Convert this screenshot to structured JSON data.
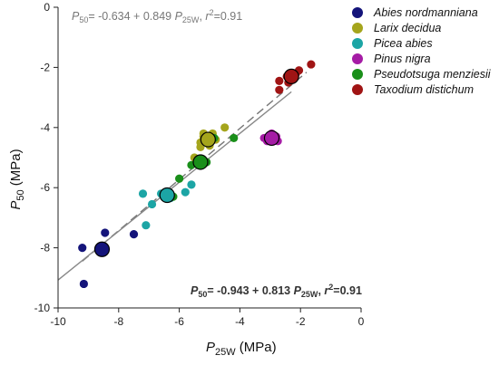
{
  "chart_data": {
    "type": "scatter",
    "title": "",
    "xlabel": {
      "main": "P",
      "sub": "25W",
      "unit": " (MPa)"
    },
    "ylabel": {
      "main": "P",
      "sub": "50",
      "unit": " (MPa)"
    },
    "xlim": [
      -10,
      0
    ],
    "ylim": [
      -10,
      0
    ],
    "xticks": [
      -10,
      -8,
      -6,
      -4,
      -2,
      0
    ],
    "yticks": [
      -10,
      -8,
      -6,
      -4,
      -2,
      0
    ],
    "grid": false,
    "legend_position": "top-right",
    "series": [
      {
        "name": "Abies nordmanniana",
        "color": "#14147a",
        "points": [
          [
            -9.15,
            -9.2
          ],
          [
            -9.2,
            -8.0
          ],
          [
            -8.55,
            -8.05
          ],
          [
            -8.45,
            -7.5
          ],
          [
            -7.5,
            -7.55
          ]
        ],
        "mean": [
          -8.55,
          -8.05
        ]
      },
      {
        "name": "Larix decidua",
        "color": "#a5a51c",
        "points": [
          [
            -5.0,
            -4.6
          ],
          [
            -5.3,
            -4.5
          ],
          [
            -5.2,
            -4.3
          ],
          [
            -4.9,
            -4.2
          ],
          [
            -4.5,
            -4.0
          ],
          [
            -5.5,
            -5.0
          ],
          [
            -5.3,
            -4.65
          ],
          [
            -4.8,
            -4.4
          ],
          [
            -5.2,
            -4.2
          ]
        ],
        "mean": [
          -5.05,
          -4.4
        ]
      },
      {
        "name": "Picea abies",
        "color": "#1ca5a5",
        "points": [
          [
            -7.1,
            -7.25
          ],
          [
            -6.9,
            -6.55
          ],
          [
            -7.2,
            -6.2
          ],
          [
            -6.3,
            -6.35
          ],
          [
            -5.8,
            -6.15
          ],
          [
            -5.6,
            -5.9
          ],
          [
            -6.6,
            -6.2
          ]
        ],
        "mean": [
          -6.4,
          -6.25
        ]
      },
      {
        "name": "Pinus nigra",
        "color": "#a51ca5",
        "points": [
          [
            -3.2,
            -4.35
          ],
          [
            -3.0,
            -4.4
          ],
          [
            -2.8,
            -4.3
          ],
          [
            -2.95,
            -4.2
          ],
          [
            -3.1,
            -4.45
          ],
          [
            -2.75,
            -4.45
          ]
        ],
        "mean": [
          -2.95,
          -4.35
        ]
      },
      {
        "name": "Pseudotsuga menziesii",
        "color": "#1a8f1a",
        "points": [
          [
            -4.2,
            -4.35
          ],
          [
            -4.85,
            -4.35
          ],
          [
            -5.6,
            -5.25
          ],
          [
            -6.0,
            -5.7
          ],
          [
            -6.2,
            -6.3
          ],
          [
            -5.1,
            -5.15
          ]
        ],
        "mean": [
          -5.3,
          -5.15
        ]
      },
      {
        "name": "Taxodium distichum",
        "color": "#a01414",
        "points": [
          [
            -2.7,
            -2.75
          ],
          [
            -2.7,
            -2.45
          ],
          [
            -2.45,
            -2.3
          ],
          [
            -2.2,
            -2.25
          ],
          [
            -2.05,
            -2.1
          ],
          [
            -1.65,
            -1.9
          ],
          [
            -2.4,
            -2.5
          ],
          [
            -2.15,
            -2.2
          ]
        ],
        "mean": [
          -2.3,
          -2.3
        ]
      }
    ],
    "fits": [
      {
        "intercept": -0.634,
        "slope": 0.849,
        "r2": 0.91,
        "x_range": [
          -9.2,
          -1.8
        ],
        "style": "dashed",
        "color": "#777777"
      },
      {
        "intercept": -0.943,
        "slope": 0.813,
        "r2": 0.91,
        "x_range": [
          -10.0,
          -2.3
        ],
        "style": "solid",
        "color": "#888888"
      }
    ],
    "equations": {
      "top": {
        "p": "P",
        "sub": "50",
        "body": "= -0.634 + 0.849 ",
        "p2": "P",
        "sub2": "25W",
        "tail": ", ",
        "r": "r",
        "sup": "2",
        "r2val": "=0.91"
      },
      "bottom": {
        "p": "P",
        "sub": "50",
        "body": "= -0.943 + 0.813 ",
        "p2": "P",
        "sub2": "25W",
        "tail": ", ",
        "r": "r",
        "sup": "2",
        "r2val": "=0.91"
      }
    }
  }
}
